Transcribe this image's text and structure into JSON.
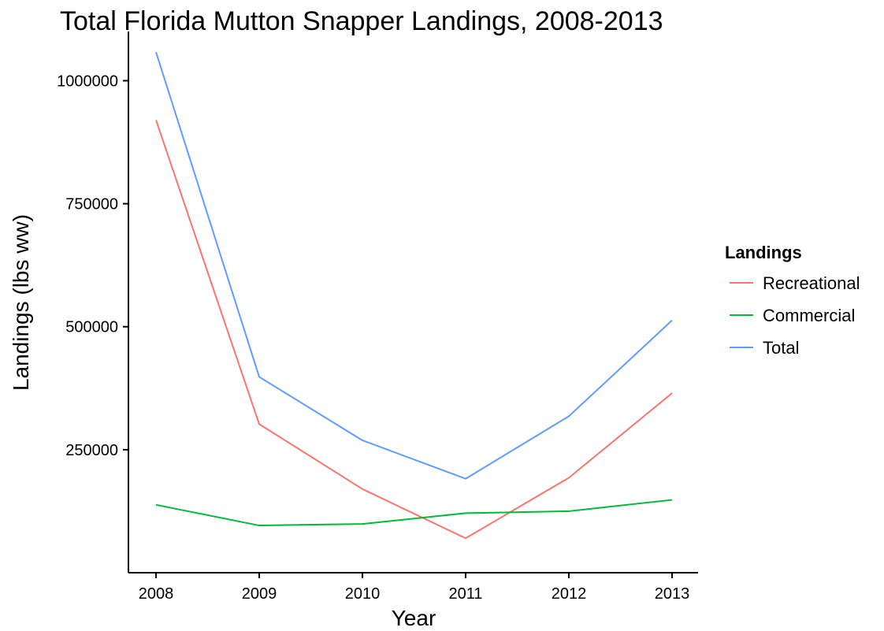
{
  "chart_data": {
    "type": "line",
    "title": "Total Florida Mutton Snapper Landings, 2008-2013",
    "xlabel": "Year",
    "ylabel": "Landings (lbs ww)",
    "x": [
      "2008",
      "2009",
      "2010",
      "2011",
      "2012",
      "2013"
    ],
    "xlim": [
      2008,
      2013
    ],
    "ylim": [
      0,
      1100000
    ],
    "yticks": [
      250000,
      500000,
      750000,
      1000000
    ],
    "ytick_labels": [
      "250000",
      "500000",
      "750000",
      "1000000"
    ],
    "grid": false,
    "legend": {
      "title": "Landings",
      "placement": "right"
    },
    "series": [
      {
        "name": "Recreational",
        "color": "#F8766D",
        "values": [
          920000,
          302000,
          170000,
          70000,
          193000,
          365000
        ]
      },
      {
        "name": "Commercial",
        "color": "#00BA38",
        "values": [
          138000,
          96000,
          99000,
          121000,
          125000,
          148000
        ]
      },
      {
        "name": "Total",
        "color": "#619CFF",
        "values": [
          1058000,
          398000,
          269000,
          191000,
          318000,
          513000
        ]
      }
    ]
  }
}
